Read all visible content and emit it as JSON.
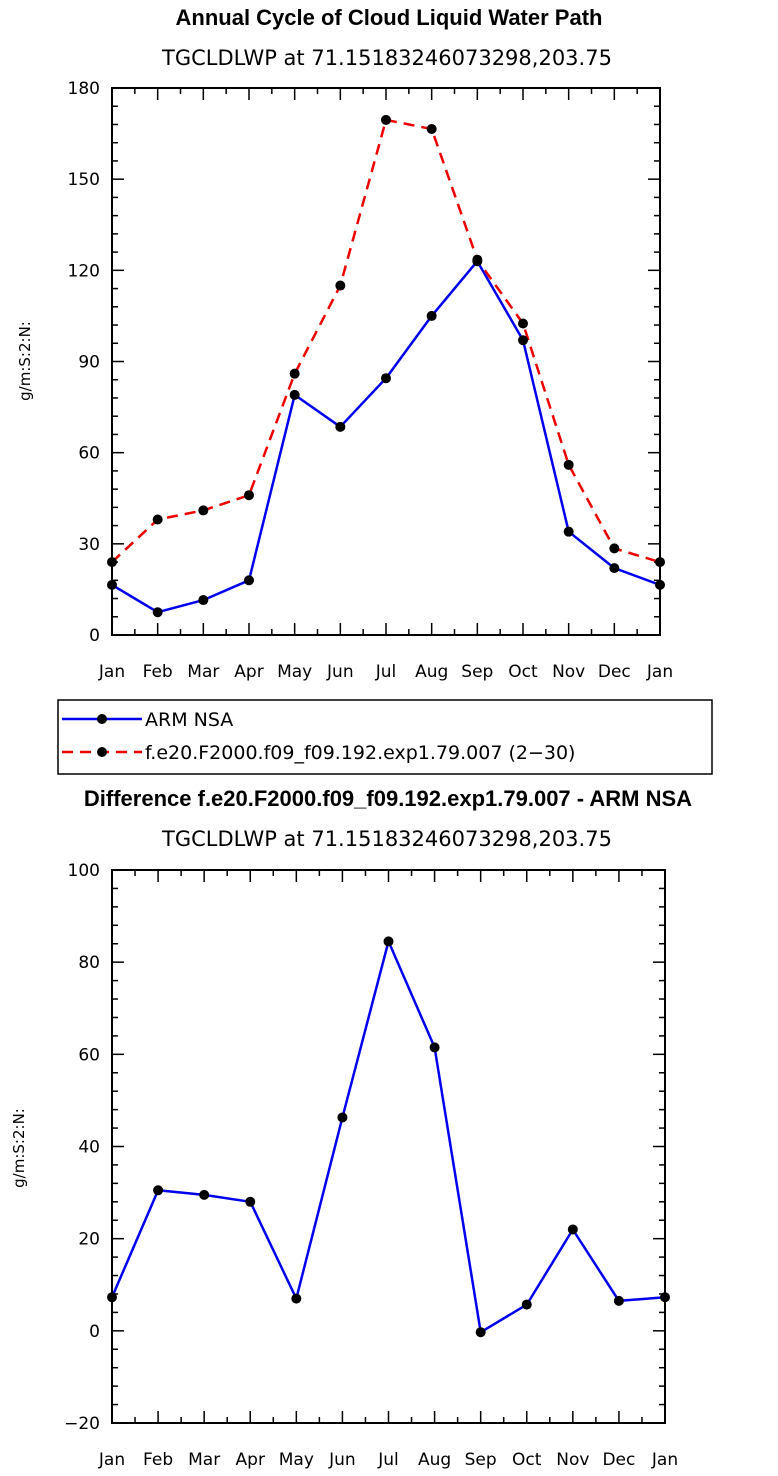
{
  "colors": {
    "arm": "#0000ee",
    "model": "#ee0000",
    "marker": "#000000",
    "frame": "#000000"
  },
  "chart_data": [
    {
      "type": "line",
      "title": "Annual Cycle of Cloud Liquid Water Path",
      "subtitle": "TGCLDLWP  at  71.15183246073298,203.75",
      "xlabel": "",
      "ylabel": "g/m:S:2:N:",
      "categories": [
        "Jan",
        "Feb",
        "Mar",
        "Apr",
        "May",
        "Jun",
        "Jul",
        "Aug",
        "Sep",
        "Oct",
        "Nov",
        "Dec",
        "Jan"
      ],
      "ylim": [
        0,
        180
      ],
      "yticks": [
        0,
        30,
        60,
        90,
        120,
        150,
        180
      ],
      "ytick_labels": [
        "0",
        "30",
        "60",
        "90",
        "120",
        "150",
        "180"
      ],
      "series": [
        {
          "name": "ARM  NSA",
          "style": "solid",
          "color": "#0000ee",
          "values": [
            16.5,
            7.5,
            11.5,
            18,
            79,
            68.5,
            84.5,
            105,
            123,
            97,
            34,
            22,
            16.5
          ]
        },
        {
          "name": "f.e20.F2000.f09_f09.192.exp1.79.007  (2−30)",
          "style": "dashed",
          "color": "#ee0000",
          "values": [
            24,
            38,
            41,
            46,
            86,
            115,
            169.5,
            166.5,
            123.5,
            102.5,
            56,
            28.5,
            24
          ]
        }
      ],
      "legend": {
        "position": "below",
        "entries": [
          "ARM  NSA",
          "f.e20.F2000.f09_f09.192.exp1.79.007  (2−30)"
        ]
      }
    },
    {
      "type": "line",
      "title": "Difference f.e20.F2000.f09_f09.192.exp1.79.007 - ARM NSA",
      "subtitle": "TGCLDLWP  at  71.15183246073298,203.75",
      "xlabel": "",
      "ylabel": "g/m:S:2:N:",
      "categories": [
        "Jan",
        "Feb",
        "Mar",
        "Apr",
        "May",
        "Jun",
        "Jul",
        "Aug",
        "Sep",
        "Oct",
        "Nov",
        "Dec",
        "Jan"
      ],
      "ylim": [
        -20,
        100
      ],
      "yticks": [
        -20,
        0,
        20,
        40,
        60,
        80,
        100
      ],
      "ytick_labels": [
        "−20",
        "0",
        "20",
        "40",
        "60",
        "80",
        "100"
      ],
      "series": [
        {
          "name": "Difference",
          "style": "solid",
          "color": "#0000ee",
          "values": [
            7.3,
            30.5,
            29.5,
            28,
            7,
            46.3,
            84.5,
            61.5,
            -0.3,
            5.7,
            22,
            6.5,
            7.3
          ]
        }
      ]
    }
  ]
}
